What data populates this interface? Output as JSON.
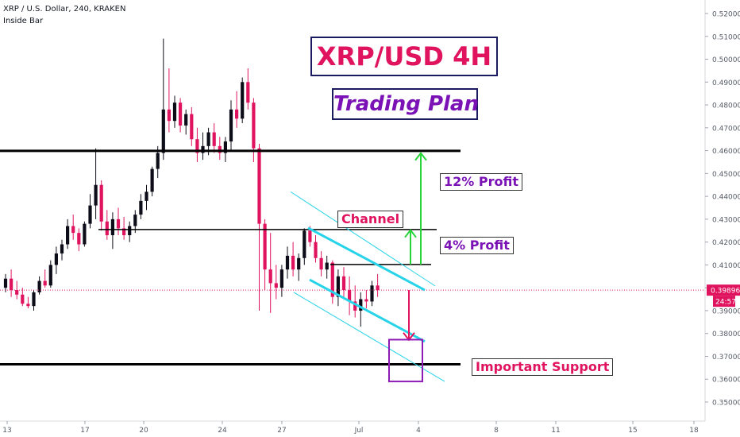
{
  "header": {
    "symbol": "XRP / U.S. Dollar, 240, KRAKEN",
    "indicator": "Inside Bar"
  },
  "annotations": {
    "title": "XRP/USD 4H",
    "subtitle": "Trading Plan",
    "profit_12": "12% Profit",
    "profit_4": "4% Profit",
    "channel": "Channel",
    "support": "Important Support"
  },
  "colors": {
    "up": "#0d0d1a",
    "down": "#e0135f",
    "channel": "#27d3e8",
    "arrow_up": "#27d43a",
    "arrow_down": "#e0135f",
    "box": "#8e1bb5",
    "price": "#e0135f"
  },
  "chart_data": {
    "type": "candlestick",
    "ylim": [
      0.345,
      0.525
    ],
    "y_ticks": [
      "0.52000",
      "0.51000",
      "0.50000",
      "0.49000",
      "0.48000",
      "0.47000",
      "0.46000",
      "0.45000",
      "0.44000",
      "0.43000",
      "0.42000",
      "0.41000",
      "0.40000",
      "0.39000",
      "0.38000",
      "0.37000",
      "0.36000",
      "0.35000"
    ],
    "x_ticks": [
      "13",
      "17",
      "20",
      "24",
      "27",
      "Jul",
      "4",
      "8",
      "11",
      "15",
      "18"
    ],
    "price": {
      "last": "0.39896",
      "timer": "24:57"
    },
    "series": [
      {
        "o": 0.4,
        "h": 0.406,
        "l": 0.398,
        "c": 0.404
      },
      {
        "o": 0.404,
        "h": 0.408,
        "l": 0.396,
        "c": 0.399
      },
      {
        "o": 0.399,
        "h": 0.403,
        "l": 0.395,
        "c": 0.397
      },
      {
        "o": 0.397,
        "h": 0.4,
        "l": 0.392,
        "c": 0.393
      },
      {
        "o": 0.393,
        "h": 0.396,
        "l": 0.391,
        "c": 0.392
      },
      {
        "o": 0.392,
        "h": 0.399,
        "l": 0.39,
        "c": 0.398
      },
      {
        "o": 0.398,
        "h": 0.405,
        "l": 0.397,
        "c": 0.403
      },
      {
        "o": 0.403,
        "h": 0.408,
        "l": 0.4,
        "c": 0.401
      },
      {
        "o": 0.401,
        "h": 0.412,
        "l": 0.4,
        "c": 0.41
      },
      {
        "o": 0.41,
        "h": 0.418,
        "l": 0.406,
        "c": 0.415
      },
      {
        "o": 0.415,
        "h": 0.421,
        "l": 0.412,
        "c": 0.419
      },
      {
        "o": 0.419,
        "h": 0.43,
        "l": 0.417,
        "c": 0.427
      },
      {
        "o": 0.427,
        "h": 0.432,
        "l": 0.421,
        "c": 0.424
      },
      {
        "o": 0.424,
        "h": 0.426,
        "l": 0.416,
        "c": 0.419
      },
      {
        "o": 0.419,
        "h": 0.429,
        "l": 0.418,
        "c": 0.428
      },
      {
        "o": 0.428,
        "h": 0.441,
        "l": 0.426,
        "c": 0.436
      },
      {
        "o": 0.436,
        "h": 0.461,
        "l": 0.43,
        "c": 0.445
      },
      {
        "o": 0.445,
        "h": 0.447,
        "l": 0.425,
        "c": 0.429
      },
      {
        "o": 0.429,
        "h": 0.434,
        "l": 0.421,
        "c": 0.423
      },
      {
        "o": 0.423,
        "h": 0.433,
        "l": 0.417,
        "c": 0.43
      },
      {
        "o": 0.43,
        "h": 0.435,
        "l": 0.423,
        "c": 0.426
      },
      {
        "o": 0.426,
        "h": 0.431,
        "l": 0.421,
        "c": 0.423
      },
      {
        "o": 0.423,
        "h": 0.429,
        "l": 0.42,
        "c": 0.427
      },
      {
        "o": 0.427,
        "h": 0.434,
        "l": 0.424,
        "c": 0.432
      },
      {
        "o": 0.432,
        "h": 0.441,
        "l": 0.43,
        "c": 0.438
      },
      {
        "o": 0.438,
        "h": 0.445,
        "l": 0.434,
        "c": 0.442
      },
      {
        "o": 0.442,
        "h": 0.453,
        "l": 0.44,
        "c": 0.452
      },
      {
        "o": 0.452,
        "h": 0.462,
        "l": 0.448,
        "c": 0.459
      },
      {
        "o": 0.459,
        "h": 0.509,
        "l": 0.456,
        "c": 0.478
      },
      {
        "o": 0.478,
        "h": 0.496,
        "l": 0.468,
        "c": 0.473
      },
      {
        "o": 0.473,
        "h": 0.484,
        "l": 0.47,
        "c": 0.481
      },
      {
        "o": 0.481,
        "h": 0.483,
        "l": 0.468,
        "c": 0.471
      },
      {
        "o": 0.471,
        "h": 0.478,
        "l": 0.467,
        "c": 0.476
      },
      {
        "o": 0.476,
        "h": 0.479,
        "l": 0.462,
        "c": 0.465
      },
      {
        "o": 0.465,
        "h": 0.47,
        "l": 0.455,
        "c": 0.459
      },
      {
        "o": 0.459,
        "h": 0.468,
        "l": 0.456,
        "c": 0.462
      },
      {
        "o": 0.462,
        "h": 0.47,
        "l": 0.458,
        "c": 0.468
      },
      {
        "o": 0.468,
        "h": 0.472,
        "l": 0.459,
        "c": 0.462
      },
      {
        "o": 0.462,
        "h": 0.466,
        "l": 0.456,
        "c": 0.459
      },
      {
        "o": 0.459,
        "h": 0.466,
        "l": 0.455,
        "c": 0.464
      },
      {
        "o": 0.464,
        "h": 0.482,
        "l": 0.46,
        "c": 0.478
      },
      {
        "o": 0.478,
        "h": 0.486,
        "l": 0.47,
        "c": 0.474
      },
      {
        "o": 0.474,
        "h": 0.492,
        "l": 0.472,
        "c": 0.49
      },
      {
        "o": 0.49,
        "h": 0.496,
        "l": 0.478,
        "c": 0.481
      },
      {
        "o": 0.481,
        "h": 0.483,
        "l": 0.455,
        "c": 0.461
      },
      {
        "o": 0.461,
        "h": 0.463,
        "l": 0.39,
        "c": 0.428
      },
      {
        "o": 0.428,
        "h": 0.43,
        "l": 0.399,
        "c": 0.408
      },
      {
        "o": 0.408,
        "h": 0.424,
        "l": 0.389,
        "c": 0.402
      },
      {
        "o": 0.402,
        "h": 0.41,
        "l": 0.395,
        "c": 0.4
      },
      {
        "o": 0.4,
        "h": 0.41,
        "l": 0.396,
        "c": 0.408
      },
      {
        "o": 0.408,
        "h": 0.418,
        "l": 0.404,
        "c": 0.414
      },
      {
        "o": 0.414,
        "h": 0.42,
        "l": 0.405,
        "c": 0.408
      },
      {
        "o": 0.408,
        "h": 0.415,
        "l": 0.403,
        "c": 0.413
      },
      {
        "o": 0.413,
        "h": 0.426,
        "l": 0.41,
        "c": 0.425
      },
      {
        "o": 0.425,
        "h": 0.427,
        "l": 0.418,
        "c": 0.42
      },
      {
        "o": 0.42,
        "h": 0.423,
        "l": 0.411,
        "c": 0.413
      },
      {
        "o": 0.413,
        "h": 0.416,
        "l": 0.405,
        "c": 0.408
      },
      {
        "o": 0.408,
        "h": 0.414,
        "l": 0.404,
        "c": 0.411
      },
      {
        "o": 0.411,
        "h": 0.412,
        "l": 0.393,
        "c": 0.396
      },
      {
        "o": 0.396,
        "h": 0.408,
        "l": 0.392,
        "c": 0.405
      },
      {
        "o": 0.405,
        "h": 0.409,
        "l": 0.396,
        "c": 0.399
      },
      {
        "o": 0.399,
        "h": 0.405,
        "l": 0.388,
        "c": 0.394
      },
      {
        "o": 0.394,
        "h": 0.401,
        "l": 0.387,
        "c": 0.39
      },
      {
        "o": 0.39,
        "h": 0.398,
        "l": 0.383,
        "c": 0.395
      },
      {
        "o": 0.395,
        "h": 0.399,
        "l": 0.391,
        "c": 0.394
      },
      {
        "o": 0.394,
        "h": 0.403,
        "l": 0.392,
        "c": 0.401
      },
      {
        "o": 0.401,
        "h": 0.406,
        "l": 0.396,
        "c": 0.399
      }
    ]
  }
}
